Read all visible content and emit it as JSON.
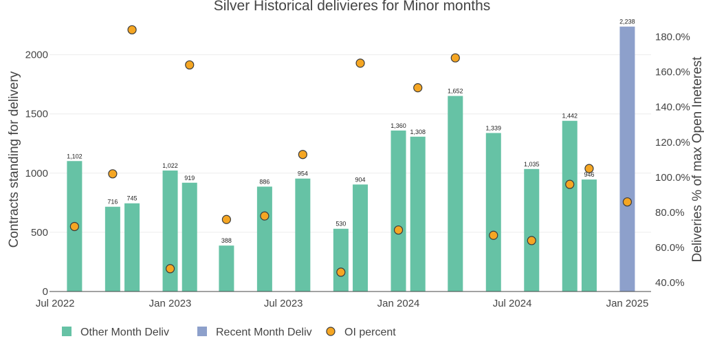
{
  "chart_data": {
    "type": "bar",
    "title": "Silver Historical delivieres for Minor months",
    "ylabel": "Contracts standing for delivery",
    "y2label": "Deliveries % of max Open Ineterest",
    "xlabel": "",
    "x_ticks": [
      {
        "date": "2022-07-01",
        "label": "Jul 2022"
      },
      {
        "date": "2023-01-01",
        "label": "Jan 2023"
      },
      {
        "date": "2023-07-01",
        "label": "Jul 2023"
      },
      {
        "date": "2024-01-01",
        "label": "Jan 2024"
      },
      {
        "date": "2024-07-01",
        "label": "Jul 2024"
      },
      {
        "date": "2025-01-01",
        "label": "Jan 2025"
      }
    ],
    "xlim": [
      "2022-06-22",
      "2025-02-08"
    ],
    "y_ticks": [
      0,
      500,
      1000,
      1500,
      2000
    ],
    "ylim": [
      0,
      2300
    ],
    "y2_ticks": [
      {
        "value": 40,
        "label": "40.0%"
      },
      {
        "value": 60,
        "label": "60.0%"
      },
      {
        "value": 80,
        "label": "80.0%"
      },
      {
        "value": 100,
        "label": "100.0%"
      },
      {
        "value": 120,
        "label": "120.0%"
      },
      {
        "value": 140,
        "label": "140.0%"
      },
      {
        "value": 160,
        "label": "160.0%"
      },
      {
        "value": 180,
        "label": "180.0%"
      }
    ],
    "y2lim": [
      35,
      190
    ],
    "grid": true,
    "legend_position": "bottom-left",
    "series": [
      {
        "name": "Other Month Deliv",
        "kind": "bar",
        "color": "#66c2a5",
        "points": [
          {
            "x": "2022-08-01",
            "value": 1102,
            "label": "1,102"
          },
          {
            "x": "2022-10-01",
            "value": 716,
            "label": "716"
          },
          {
            "x": "2022-11-01",
            "value": 745,
            "label": "745"
          },
          {
            "x": "2023-01-01",
            "value": 1022,
            "label": "1,022"
          },
          {
            "x": "2023-02-01",
            "value": 919,
            "label": "919"
          },
          {
            "x": "2023-04-01",
            "value": 388,
            "label": "388"
          },
          {
            "x": "2023-06-01",
            "value": 886,
            "label": "886"
          },
          {
            "x": "2023-08-01",
            "value": 954,
            "label": "954"
          },
          {
            "x": "2023-10-01",
            "value": 530,
            "label": "530"
          },
          {
            "x": "2023-11-01",
            "value": 904,
            "label": "904"
          },
          {
            "x": "2024-01-01",
            "value": 1360,
            "label": "1,360"
          },
          {
            "x": "2024-02-01",
            "value": 1308,
            "label": "1,308"
          },
          {
            "x": "2024-04-01",
            "value": 1652,
            "label": "1,652"
          },
          {
            "x": "2024-06-01",
            "value": 1339,
            "label": "1,339"
          },
          {
            "x": "2024-08-01",
            "value": 1035,
            "label": "1,035"
          },
          {
            "x": "2024-10-01",
            "value": 1442,
            "label": "1,442"
          },
          {
            "x": "2024-11-01",
            "value": 946,
            "label": "946"
          }
        ]
      },
      {
        "name": "Recent Month Deliv",
        "kind": "bar",
        "color": "#8da0cb",
        "points": [
          {
            "x": "2025-01-01",
            "value": 2238,
            "label": "2,238"
          }
        ]
      },
      {
        "name": "OI percent",
        "kind": "scatter",
        "axis": "y2",
        "color": "#f5a623",
        "points": [
          {
            "x": "2022-08-01",
            "value": 72
          },
          {
            "x": "2022-10-01",
            "value": 102
          },
          {
            "x": "2022-11-01",
            "value": 184
          },
          {
            "x": "2023-01-01",
            "value": 48
          },
          {
            "x": "2023-02-01",
            "value": 164
          },
          {
            "x": "2023-04-01",
            "value": 76
          },
          {
            "x": "2023-06-01",
            "value": 78
          },
          {
            "x": "2023-08-01",
            "value": 113
          },
          {
            "x": "2023-10-01",
            "value": 46
          },
          {
            "x": "2023-11-01",
            "value": 165
          },
          {
            "x": "2024-01-01",
            "value": 70
          },
          {
            "x": "2024-02-01",
            "value": 151
          },
          {
            "x": "2024-04-01",
            "value": 168
          },
          {
            "x": "2024-06-01",
            "value": 67
          },
          {
            "x": "2024-08-01",
            "value": 64
          },
          {
            "x": "2024-10-01",
            "value": 96
          },
          {
            "x": "2024-11-01",
            "value": 105
          },
          {
            "x": "2025-01-01",
            "value": 86
          }
        ]
      }
    ]
  }
}
